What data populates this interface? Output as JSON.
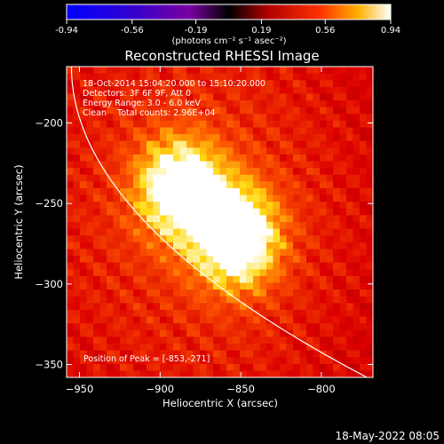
{
  "chart_data": {
    "type": "heatmap",
    "title": "Reconstructed RHESSI Image",
    "xlabel": "Heliocentric X (arcsec)",
    "ylabel": "Heliocentric Y (arcsec)",
    "xlim": [
      -958,
      -768
    ],
    "ylim": [
      -358,
      -165
    ],
    "xticks": [
      -950,
      -900,
      -850,
      -800
    ],
    "yticks": [
      -200,
      -250,
      -300,
      -350
    ],
    "colorbar": {
      "ticks": [
        -0.94,
        -0.56,
        -0.19,
        0.19,
        0.56,
        0.94
      ],
      "range": [
        -0.94,
        0.94
      ],
      "units": "(photons cm⁻² s⁻¹ asec⁻²)"
    },
    "annotations": [
      "18-Oct-2014 15:04:20.000 to 15:10:20.000",
      "Detectors: 3F 6F 9F, Att 0",
      "Energy Range: 3.0 - 6.0 keV",
      "Clean    Total counts: 2.96E+04"
    ],
    "peak_label": "Position of Peak = [-853,-271]",
    "sources": [
      {
        "x": -888,
        "y": -240,
        "peak": 0.85
      },
      {
        "x": -853,
        "y": -271,
        "peak": 0.94
      }
    ],
    "grid": false,
    "footer": "18-May-2022 08:05"
  }
}
